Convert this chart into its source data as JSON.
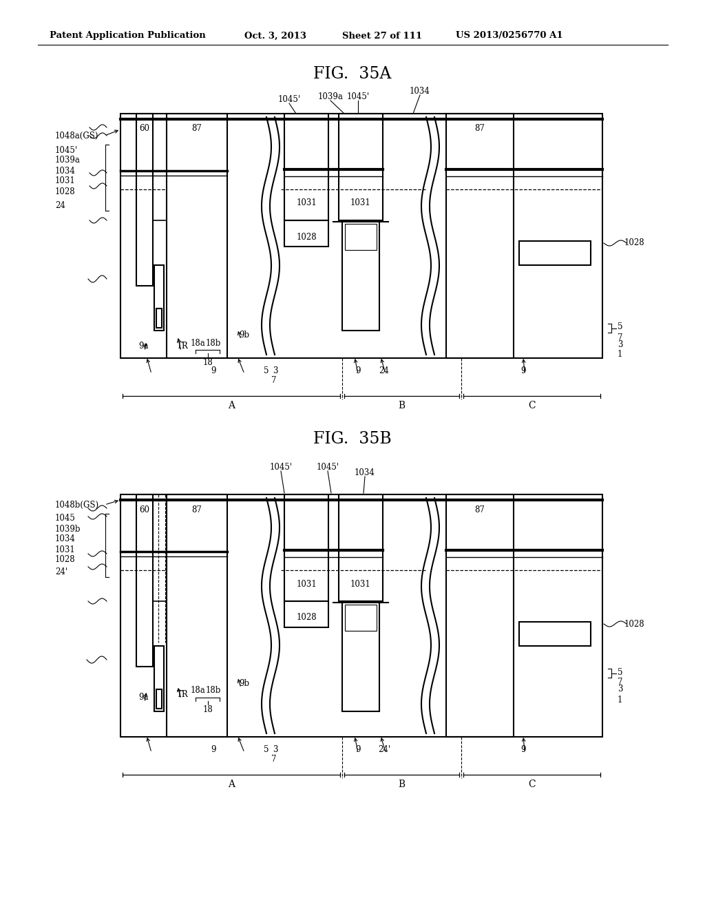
{
  "bg_color": "#ffffff",
  "header_text": "Patent Application Publication",
  "header_date": "Oct. 3, 2013",
  "header_sheet": "Sheet 27 of 111",
  "header_patent": "US 2013/0256770 A1",
  "fig_title_a": "FIG.  35A",
  "fig_title_b": "FIG.  35B"
}
